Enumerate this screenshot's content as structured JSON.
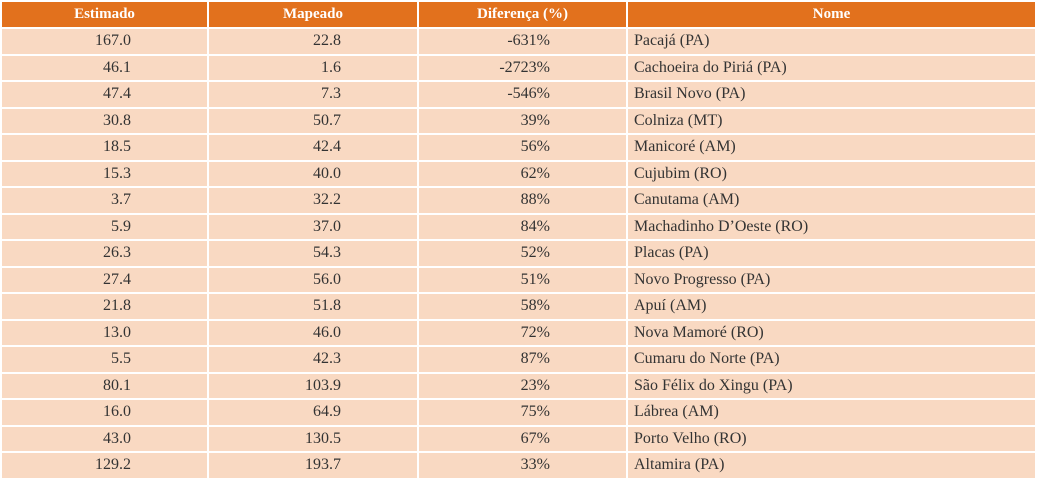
{
  "table": {
    "header": [
      "Estimado",
      "Mapeado",
      "Diferença (%)",
      "Nome"
    ],
    "rows": [
      [
        "167.0",
        "22.8",
        "-631%",
        "Pacajá (PA)"
      ],
      [
        "46.1",
        "1.6",
        "-2723%",
        "Cachoeira do Piriá (PA)"
      ],
      [
        "47.4",
        "7.3",
        "-546%",
        "Brasil Novo (PA)"
      ],
      [
        "30.8",
        "50.7",
        "39%",
        "Colniza (MT)"
      ],
      [
        "18.5",
        "42.4",
        "56%",
        "Manicoré (AM)"
      ],
      [
        "15.3",
        "40.0",
        "62%",
        "Cujubim (RO)"
      ],
      [
        "3.7",
        "32.2",
        "88%",
        "Canutama (AM)"
      ],
      [
        "5.9",
        "37.0",
        "84%",
        "Machadinho D’Oeste (RO)"
      ],
      [
        "26.3",
        "54.3",
        "52%",
        "Placas (PA)"
      ],
      [
        "27.4",
        "56.0",
        "51%",
        "Novo Progresso (PA)"
      ],
      [
        "21.8",
        "51.8",
        "58%",
        "Apuí (AM)"
      ],
      [
        "13.0",
        "46.0",
        "72%",
        "Nova Mamoré (RO)"
      ],
      [
        "5.5",
        "42.3",
        "87%",
        "Cumaru do Norte (PA)"
      ],
      [
        "80.1",
        "103.9",
        "23%",
        "São Félix do Xingu (PA)"
      ],
      [
        "16.0",
        "64.9",
        "75%",
        "Lábrea (AM)"
      ],
      [
        "43.0",
        "130.5",
        "67%",
        "Porto Velho (RO)"
      ],
      [
        "129.2",
        "193.7",
        "33%",
        "Altamira (PA)"
      ]
    ]
  }
}
